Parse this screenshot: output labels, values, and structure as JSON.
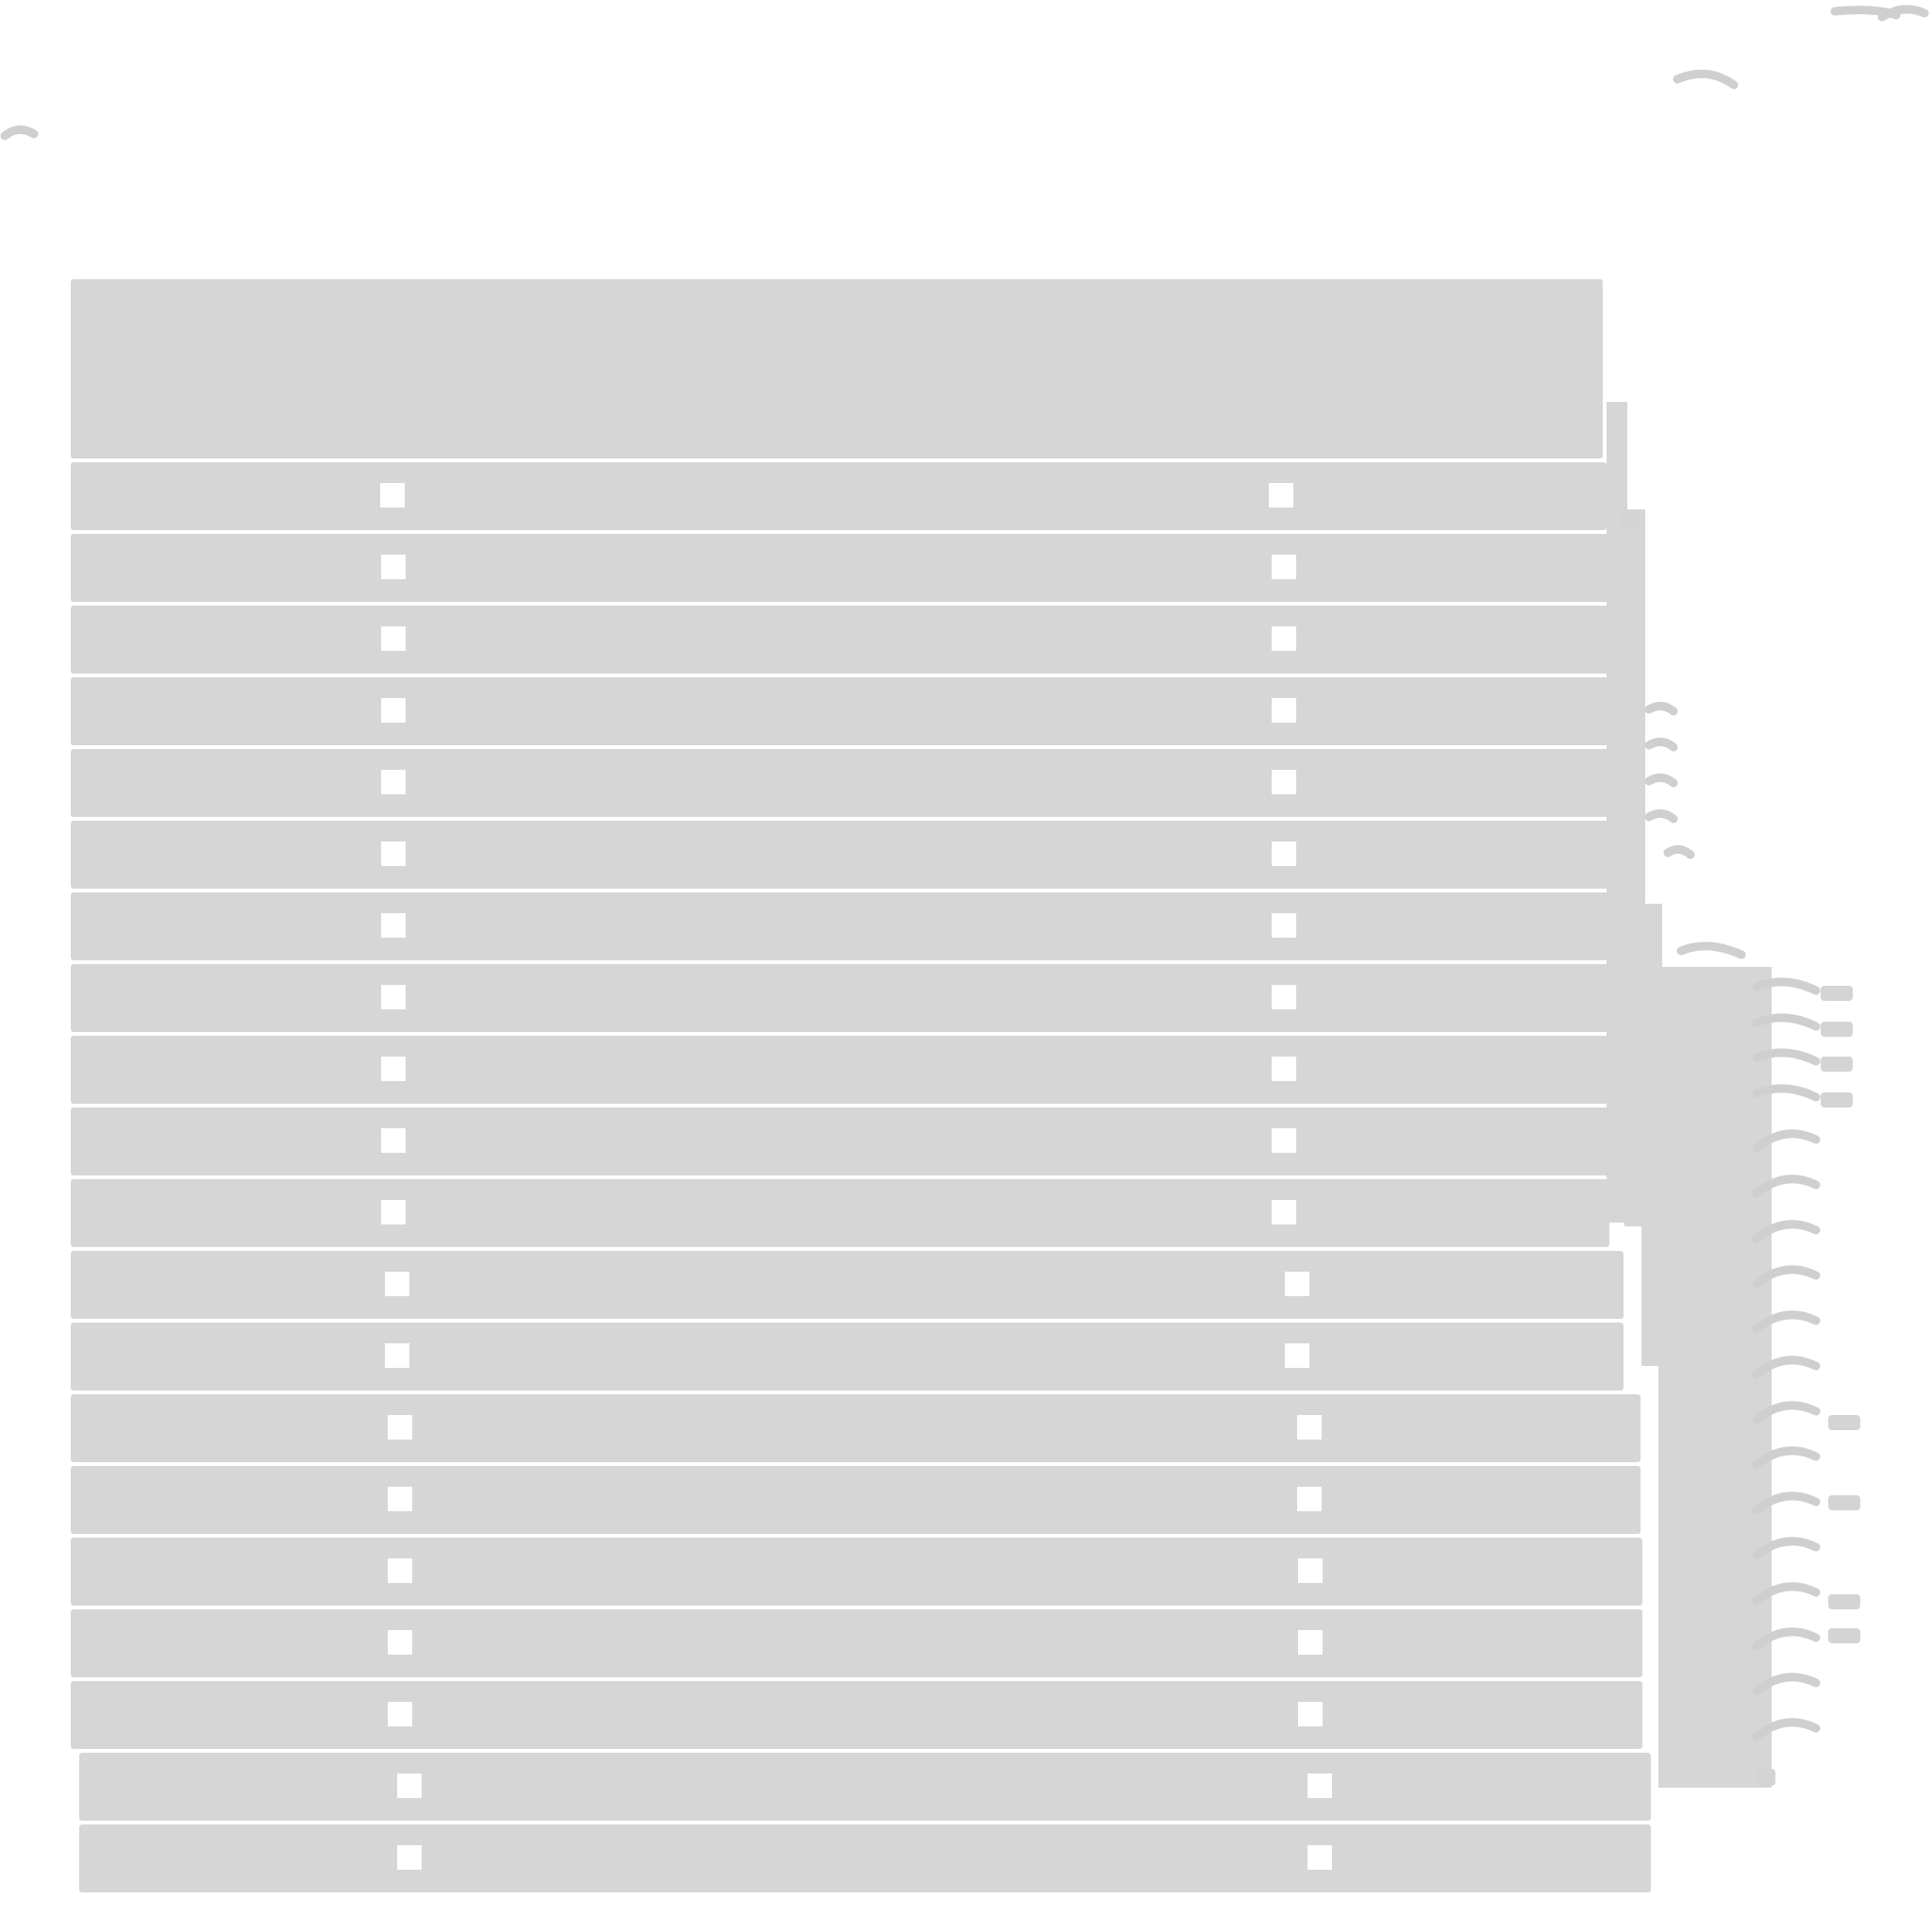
{
  "slat_count": 20,
  "colors": {
    "background": "#ffffff",
    "slat": "#d6d6d6",
    "slat_hole": "#ffffff",
    "dash_mark": "#cfcfcf"
  }
}
